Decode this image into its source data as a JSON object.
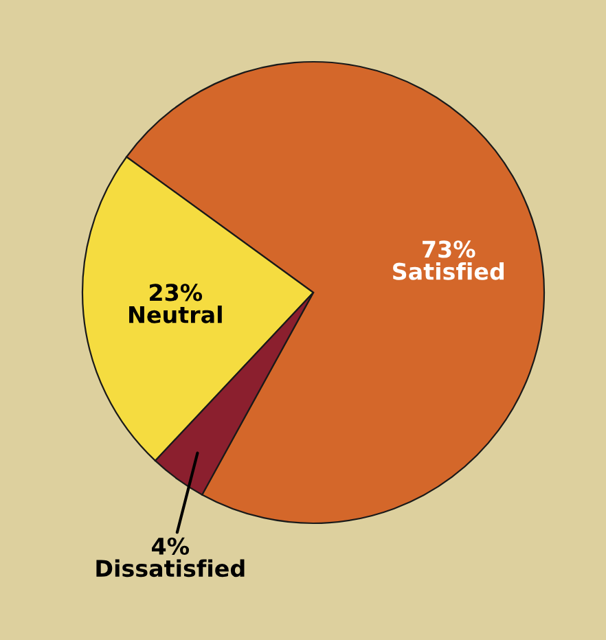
{
  "chart_data": {
    "type": "pie",
    "categories": [
      "Satisfied",
      "Neutral",
      "Dissatisfied"
    ],
    "values": [
      73,
      23,
      4
    ],
    "value_labels": [
      "73%",
      "23%",
      "4%"
    ],
    "colors": [
      "#d4672a",
      "#f5dc40",
      "#8b1f2e"
    ]
  }
}
